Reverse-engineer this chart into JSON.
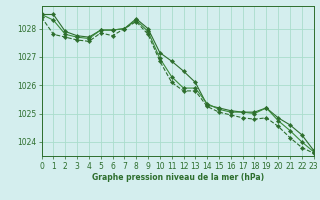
{
  "title": "Graphe pression niveau de la mer (hPa)",
  "background_color": "#d4eeee",
  "grid_color": "#aaddcc",
  "line_color_main": "#2d6e2d",
  "line_color_secondary": "#3a8a3a",
  "xlim": [
    0,
    23
  ],
  "ylim": [
    1023.5,
    1028.8
  ],
  "yticks": [
    1024,
    1025,
    1026,
    1027,
    1028
  ],
  "xticks": [
    0,
    1,
    2,
    3,
    4,
    5,
    6,
    7,
    8,
    9,
    10,
    11,
    12,
    13,
    14,
    15,
    16,
    17,
    18,
    19,
    20,
    21,
    22,
    23
  ],
  "series1": [
    1028.5,
    1028.5,
    1027.9,
    1027.75,
    1027.7,
    1027.95,
    1027.95,
    1028.0,
    1028.35,
    1028.0,
    1027.15,
    1026.85,
    1026.5,
    1026.1,
    1025.3,
    1025.2,
    1025.1,
    1025.05,
    1025.05,
    1025.2,
    1024.85,
    1024.6,
    1024.25,
    1023.7
  ],
  "series2": [
    1028.5,
    1028.3,
    1027.8,
    1027.7,
    1027.65,
    1027.95,
    1027.95,
    1028.0,
    1028.3,
    1027.9,
    1026.95,
    1026.3,
    1025.9,
    1025.9,
    1025.35,
    1025.15,
    1025.05,
    1025.05,
    1025.0,
    1025.2,
    1024.75,
    1024.4,
    1024.0,
    1023.65
  ],
  "series3": [
    1028.4,
    1027.8,
    1027.7,
    1027.6,
    1027.55,
    1027.85,
    1027.75,
    1028.0,
    1028.25,
    1027.8,
    1026.85,
    1026.1,
    1025.8,
    1025.8,
    1025.25,
    1025.05,
    1024.95,
    1024.85,
    1024.8,
    1024.85,
    1024.55,
    1024.15,
    1023.8,
    1023.6
  ]
}
